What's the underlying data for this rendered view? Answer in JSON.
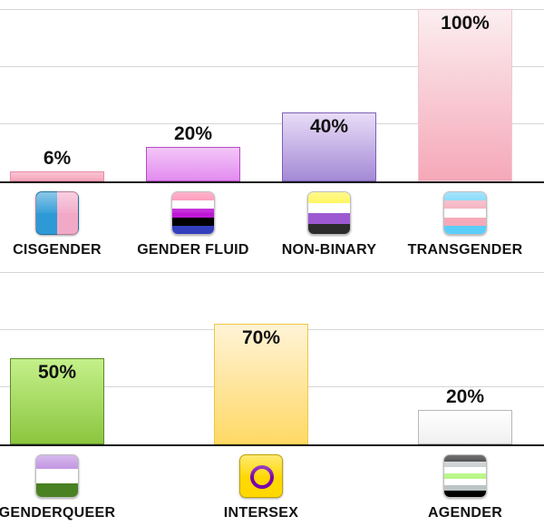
{
  "chart_data": [
    {
      "type": "bar",
      "categories": [
        "CISGENDER",
        "GENDER FLUID",
        "NON-BINARY",
        "TRANSGENDER"
      ],
      "values": [
        6,
        20,
        40,
        100
      ],
      "value_labels": [
        "6%",
        "20%",
        "40%",
        "100%"
      ],
      "ylim": [
        0,
        100
      ],
      "grid": true,
      "bar_colors": [
        [
          "#f9c4d2",
          "#f5a6bb",
          "#e88aa6"
        ],
        [
          "#f3c6f7",
          "#e38cf0",
          "#b44dc0"
        ],
        [
          "#e8dcf7",
          "#a48ad6",
          "#7d5fb8"
        ],
        [
          "#fbeef0",
          "#f5a8b8",
          "#f0c8d2"
        ]
      ],
      "flag_icons": [
        "cisgender-flag-icon",
        "genderfluid-flag-icon",
        "nonbinary-flag-icon",
        "transgender-flag-icon"
      ],
      "flag_stripes": [
        [
          "#2d9ad6",
          "#f2a9c8"
        ],
        [
          "#ff75a2",
          "#ffffff",
          "#be18d6",
          "#000000",
          "#333ebd"
        ],
        [
          "#fff430",
          "#ffffff",
          "#9c59d1",
          "#2c2c2c"
        ],
        [
          "#5bcefa",
          "#f5a9b8",
          "#ffffff",
          "#f5a9b8",
          "#5bcefa"
        ]
      ]
    },
    {
      "type": "bar",
      "categories": [
        "GENDERQUEER",
        "INTERSEX",
        "AGENDER"
      ],
      "values": [
        50,
        70,
        20
      ],
      "value_labels": [
        "50%",
        "70%",
        "20%"
      ],
      "ylim": [
        0,
        100
      ],
      "grid": true,
      "bar_colors": [
        [
          "#c4f08a",
          "#8cc63f",
          "#5a8a2a"
        ],
        [
          "#fff3d6",
          "#ffd966",
          "#f0c640"
        ],
        [
          "#ffffff",
          "#f0f0f0",
          "#b8b8b8"
        ]
      ],
      "flag_icons": [
        "genderqueer-flag-icon",
        "intersex-flag-icon",
        "agender-flag-icon"
      ],
      "flag_stripes": [
        [
          "#b57edc",
          "#ffffff",
          "#4a8123"
        ],
        [
          "#ffd800"
        ],
        [
          "#000000",
          "#bcc4c7",
          "#ffffff",
          "#b7f684",
          "#ffffff",
          "#bcc4c7",
          "#000000"
        ]
      ]
    }
  ]
}
